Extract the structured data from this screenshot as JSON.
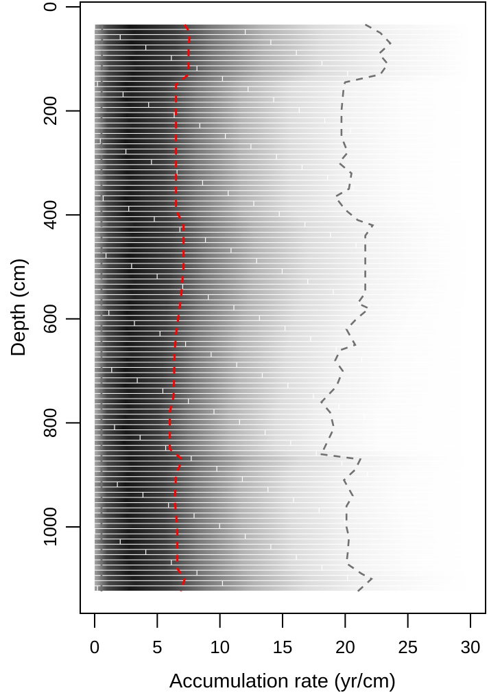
{
  "chart_data": {
    "type": "heatmap",
    "title": "",
    "xlabel": "Accumulation rate (yr/cm)",
    "ylabel": "Depth (cm)",
    "xlim": [
      0,
      30
    ],
    "ylim": [
      1124,
      0
    ],
    "x_ticks": [
      0,
      5,
      10,
      15,
      20,
      25,
      30
    ],
    "y_ticks": [
      0,
      200,
      400,
      600,
      800,
      1000
    ],
    "grid": false,
    "legend": null,
    "depth_range": [
      34,
      1124
    ],
    "row_spacing_cm": 10,
    "description": "Grey-scale density of accumulation-rate distributions per depth slice (darkest around 1-4 yr/cm, fading to white near 30 yr/cm), with mean (red dashed) and 95% range (grey dashed) curves.",
    "series": [
      {
        "name": "mean",
        "color": "#ff0000",
        "style": "dashed",
        "points": [
          [
            34,
            7.2
          ],
          [
            50,
            7.6
          ],
          [
            80,
            7.5
          ],
          [
            130,
            7.5
          ],
          [
            150,
            6.5
          ],
          [
            200,
            6.5
          ],
          [
            300,
            6.5
          ],
          [
            390,
            6.5
          ],
          [
            420,
            7.1
          ],
          [
            500,
            7.1
          ],
          [
            560,
            6.9
          ],
          [
            630,
            6.5
          ],
          [
            660,
            6.4
          ],
          [
            750,
            6.3
          ],
          [
            780,
            6.0
          ],
          [
            850,
            6.0
          ],
          [
            870,
            7.0
          ],
          [
            900,
            6.5
          ],
          [
            950,
            6.4
          ],
          [
            1000,
            6.6
          ],
          [
            1080,
            6.6
          ],
          [
            1100,
            7.2
          ],
          [
            1124,
            6.9
          ]
        ]
      },
      {
        "name": "upper_95",
        "color": "#707070",
        "style": "dashed",
        "points": [
          [
            34,
            21.6
          ],
          [
            50,
            22.8
          ],
          [
            70,
            23.6
          ],
          [
            90,
            22.7
          ],
          [
            110,
            23.4
          ],
          [
            130,
            22.8
          ],
          [
            145,
            20.0
          ],
          [
            150,
            19.9
          ],
          [
            200,
            19.7
          ],
          [
            250,
            19.7
          ],
          [
            280,
            20.2
          ],
          [
            300,
            19.5
          ],
          [
            320,
            20.5
          ],
          [
            350,
            20.3
          ],
          [
            365,
            19.2
          ],
          [
            390,
            20.0
          ],
          [
            410,
            21.0
          ],
          [
            420,
            22.2
          ],
          [
            440,
            21.6
          ],
          [
            500,
            21.6
          ],
          [
            550,
            21.6
          ],
          [
            570,
            21.0
          ],
          [
            580,
            21.9
          ],
          [
            600,
            20.9
          ],
          [
            620,
            20.1
          ],
          [
            650,
            20.8
          ],
          [
            660,
            19.6
          ],
          [
            680,
            19.2
          ],
          [
            700,
            19.8
          ],
          [
            730,
            19.3
          ],
          [
            760,
            18.1
          ],
          [
            780,
            18.8
          ],
          [
            810,
            19.1
          ],
          [
            850,
            18.3
          ],
          [
            860,
            18.0
          ],
          [
            870,
            21.2
          ],
          [
            890,
            20.8
          ],
          [
            910,
            19.9
          ],
          [
            940,
            20.6
          ],
          [
            960,
            20.1
          ],
          [
            1000,
            20.1
          ],
          [
            1020,
            20.3
          ],
          [
            1050,
            20.2
          ],
          [
            1070,
            20.1
          ],
          [
            1090,
            21.3
          ],
          [
            1100,
            22.1
          ],
          [
            1124,
            21.0
          ]
        ]
      },
      {
        "name": "lower_95",
        "color": "#707070",
        "style": "dashed",
        "points": [
          [
            34,
            0.6
          ],
          [
            200,
            0.55
          ],
          [
            400,
            0.55
          ],
          [
            600,
            0.55
          ],
          [
            800,
            0.55
          ],
          [
            1000,
            0.55
          ],
          [
            1124,
            0.55
          ]
        ]
      }
    ]
  },
  "axes": {
    "x_title": "Accumulation rate (yr/cm)",
    "y_title": "Depth (cm)",
    "x_tick_labels": [
      "0",
      "5",
      "10",
      "15",
      "20",
      "25",
      "30"
    ],
    "y_tick_labels": [
      "0",
      "200",
      "400",
      "600",
      "800",
      "1000"
    ]
  }
}
